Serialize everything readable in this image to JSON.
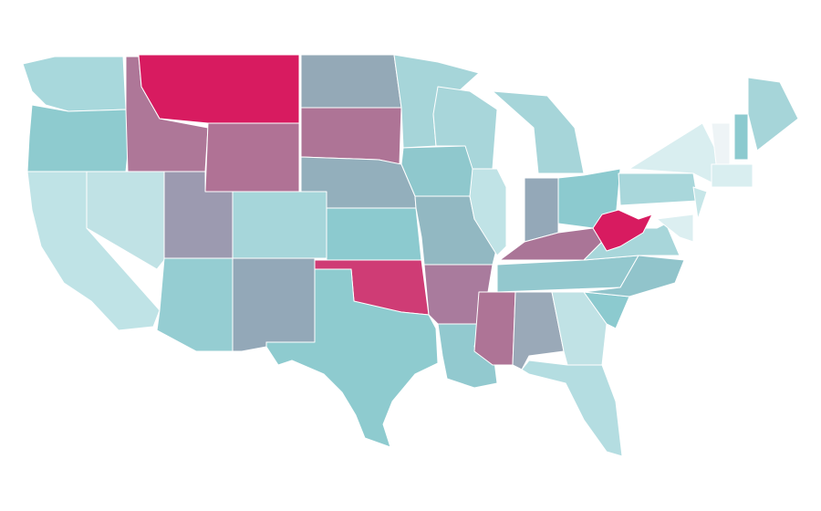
{
  "map": {
    "regions": [
      {
        "color": "#a8d8dc"
      },
      {
        "color": "#8ecbcf"
      },
      {
        "color": "#bfe3e6"
      },
      {
        "color": "#c0e2e5"
      },
      {
        "color": "#ae7798"
      },
      {
        "color": "#d81b60"
      },
      {
        "color": "#b07295"
      },
      {
        "color": "#9c9ab0"
      },
      {
        "color": "#a6d6da"
      },
      {
        "color": "#95cdd2"
      },
      {
        "color": "#93a8b8"
      },
      {
        "color": "#94a9b7"
      },
      {
        "color": "#ae7496"
      },
      {
        "color": "#93afbc"
      },
      {
        "color": "#8ccacf"
      },
      {
        "color": "#cf3c75"
      },
      {
        "color": "#8ecbcf"
      },
      {
        "color": "#a6d5d9"
      },
      {
        "color": "#8fc8cd"
      },
      {
        "color": "#92b8c2"
      },
      {
        "color": "#a97b9d"
      },
      {
        "color": "#92c9cf"
      },
      {
        "color": "#a8d6da"
      },
      {
        "color": "#c0e3e6"
      },
      {
        "color": "#a6d5d9"
      },
      {
        "color": "#94a8b8"
      },
      {
        "color": "#8ccacf"
      },
      {
        "color": "#aa7597"
      },
      {
        "color": "#93c8ce"
      },
      {
        "color": "#ae7496"
      },
      {
        "color": "#9aa9b8"
      },
      {
        "color": "#c0e2e5"
      },
      {
        "color": "#b4dde1"
      },
      {
        "color": "#8ccacf"
      },
      {
        "color": "#91c4cb"
      },
      {
        "color": "#a8d6da"
      },
      {
        "color": "#d81b60"
      },
      {
        "color": "#a9d7db"
      },
      {
        "color": "#d9eef0"
      },
      {
        "color": "#dceff1"
      },
      {
        "color": "#c6e6e8"
      },
      {
        "color": "#eef4f6"
      },
      {
        "color": "#8ccacf"
      },
      {
        "color": "#a6d5d9"
      },
      {
        "color": "#d9eef0"
      }
    ]
  }
}
